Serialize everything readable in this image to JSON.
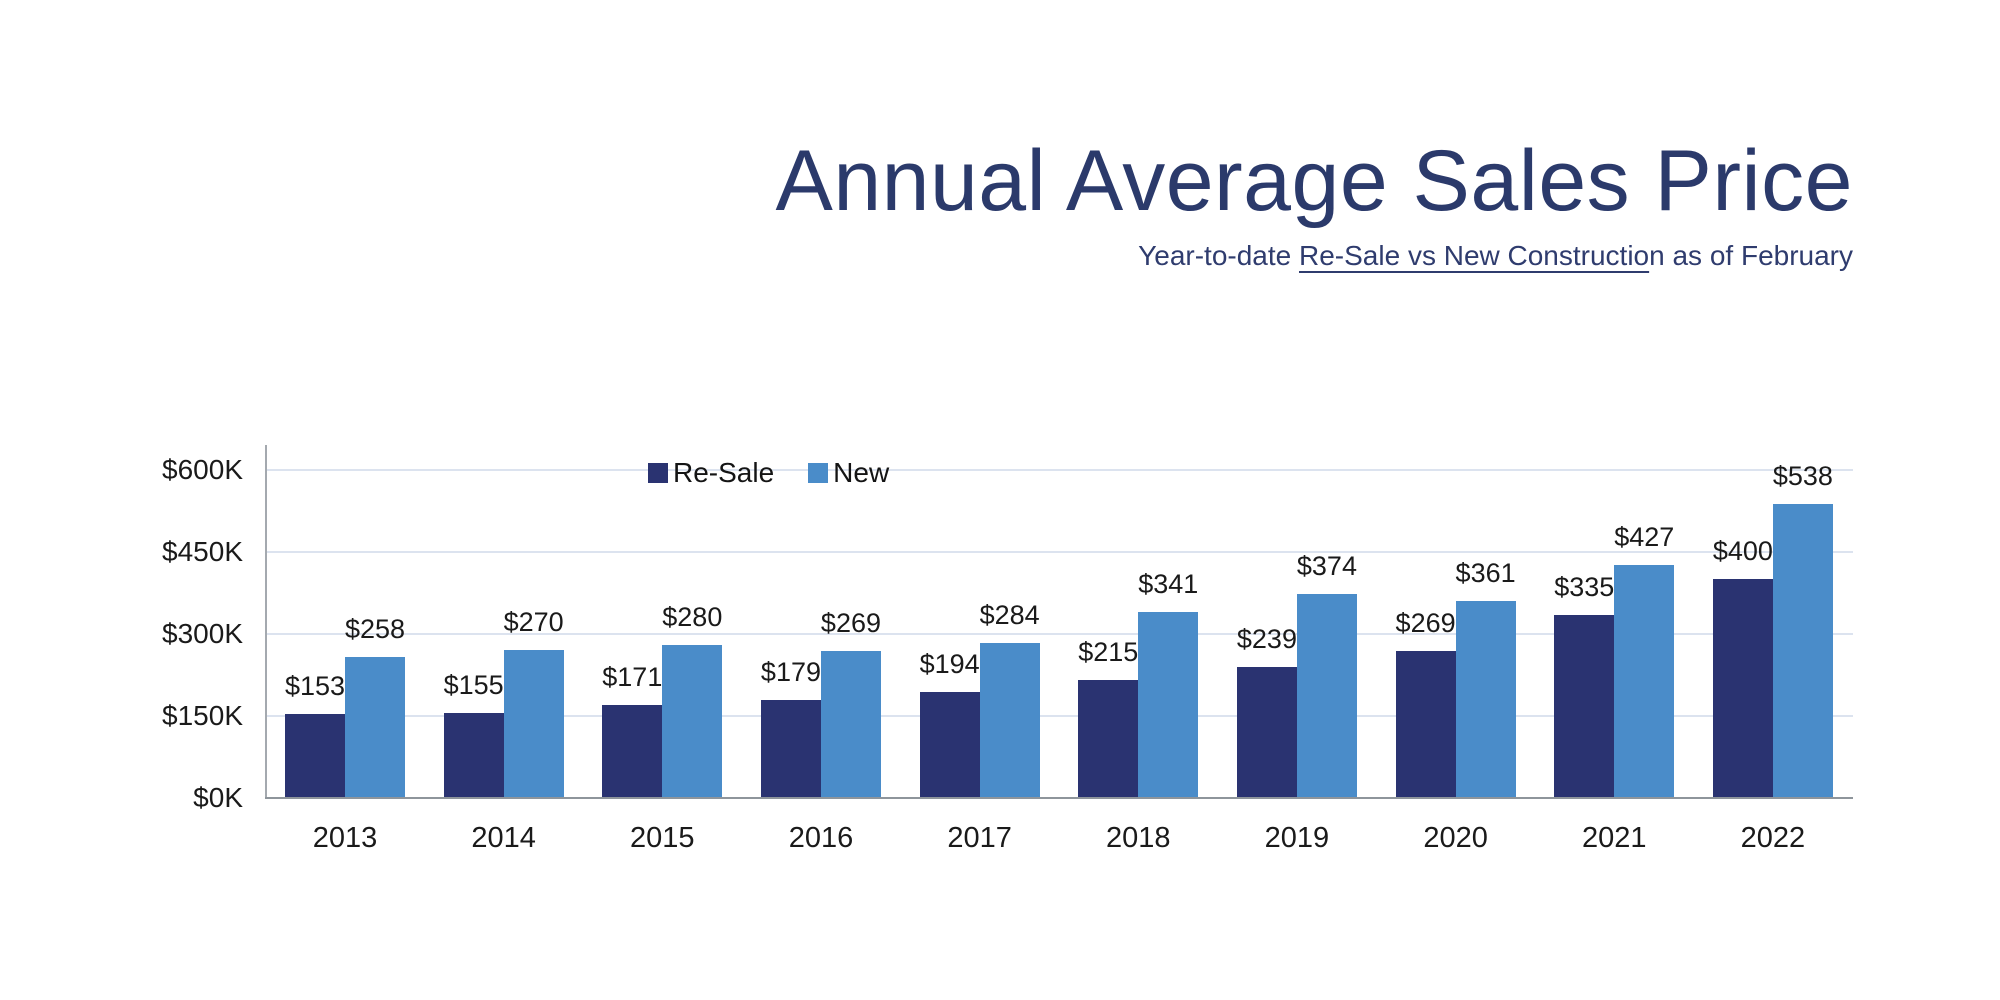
{
  "header": {
    "title": "Annual Average Sales Price",
    "subtitle_prefix": "Year-to-date ",
    "subtitle_underlined": "Re-Sale vs New Constructio",
    "subtitle_suffix": "n as of February"
  },
  "chart_data": {
    "type": "bar",
    "title": "Annual Average Sales Price",
    "subtitle": "Year-to-date Re-Sale vs New Construction as of February",
    "categories": [
      "2013",
      "2014",
      "2015",
      "2016",
      "2017",
      "2018",
      "2019",
      "2020",
      "2021",
      "2022"
    ],
    "series": [
      {
        "name": "Re-Sale",
        "color": "#2A3371",
        "values": [
          153,
          155,
          171,
          179,
          194,
          215,
          239,
          269,
          335,
          400
        ]
      },
      {
        "name": "New",
        "color": "#4A8CC9",
        "values": [
          258,
          270,
          280,
          269,
          284,
          341,
          374,
          361,
          427,
          538
        ]
      }
    ],
    "value_label_prefix": "$",
    "value_unit": "thousands of dollars",
    "ylim": [
      0,
      600
    ],
    "axis_max": 600,
    "y_tick_step": 150,
    "y_tick_labels_top_to_bottom": [
      "$600K",
      "$450K",
      "$300K",
      "$150K",
      "$0K"
    ],
    "grid": true,
    "legend_position": "top"
  },
  "colors": {
    "title_navy": "#2B3A6B",
    "subtitle_navy": "#2F3C6E",
    "resale_bar": "#2A3371",
    "new_bar": "#4A8CC9",
    "gridline": "#DCE3EF",
    "axis_line": "#8E959B",
    "label_text": "#1A1A1A"
  }
}
